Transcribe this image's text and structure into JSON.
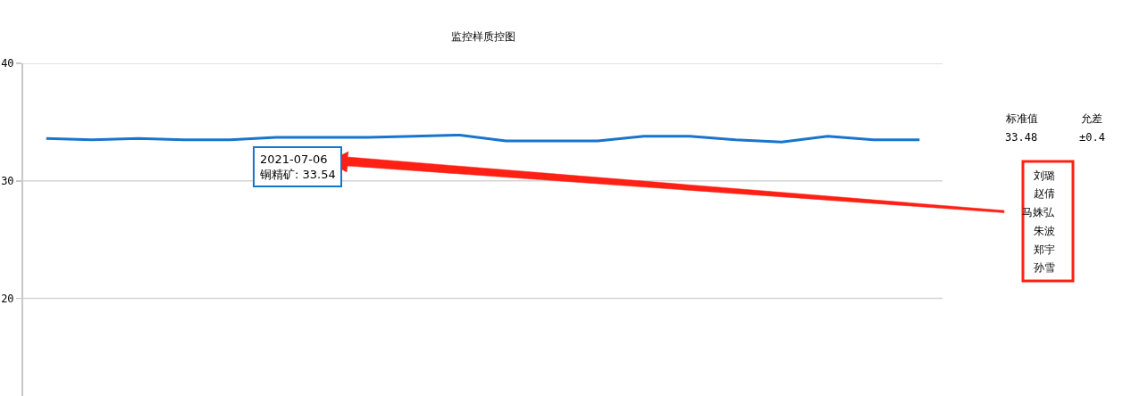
{
  "chart_data": {
    "type": "line",
    "title": "监控样质控图",
    "categories": [
      null,
      null,
      null,
      null,
      null,
      null,
      null,
      null,
      null,
      null,
      null,
      null,
      null,
      null,
      null,
      null,
      null,
      null,
      null,
      null
    ],
    "series": [
      {
        "color": "#1874cd",
        "values": [
          33.6,
          33.5,
          33.6,
          33.5,
          33.5,
          33.7,
          33.7,
          33.7,
          33.8,
          33.9,
          33.4,
          33.4,
          33.4,
          33.8,
          33.8,
          33.5,
          33.3,
          33.8,
          33.5,
          33.5
        ]
      }
    ],
    "ylim": [
      11.7,
      40
    ],
    "yticks": [
      20,
      30,
      40
    ],
    "grid": "y",
    "tick_labels": "y",
    "line_style": "solid",
    "annotations": [
      "2021-07-06\n铜精矿: 33.54",
      "标准值",
      "允差",
      "33.48",
      "±0.4",
      "刘璐",
      "赵倩",
      "马姝弘",
      "朱波",
      "郑宇",
      "孙雪"
    ]
  }
}
